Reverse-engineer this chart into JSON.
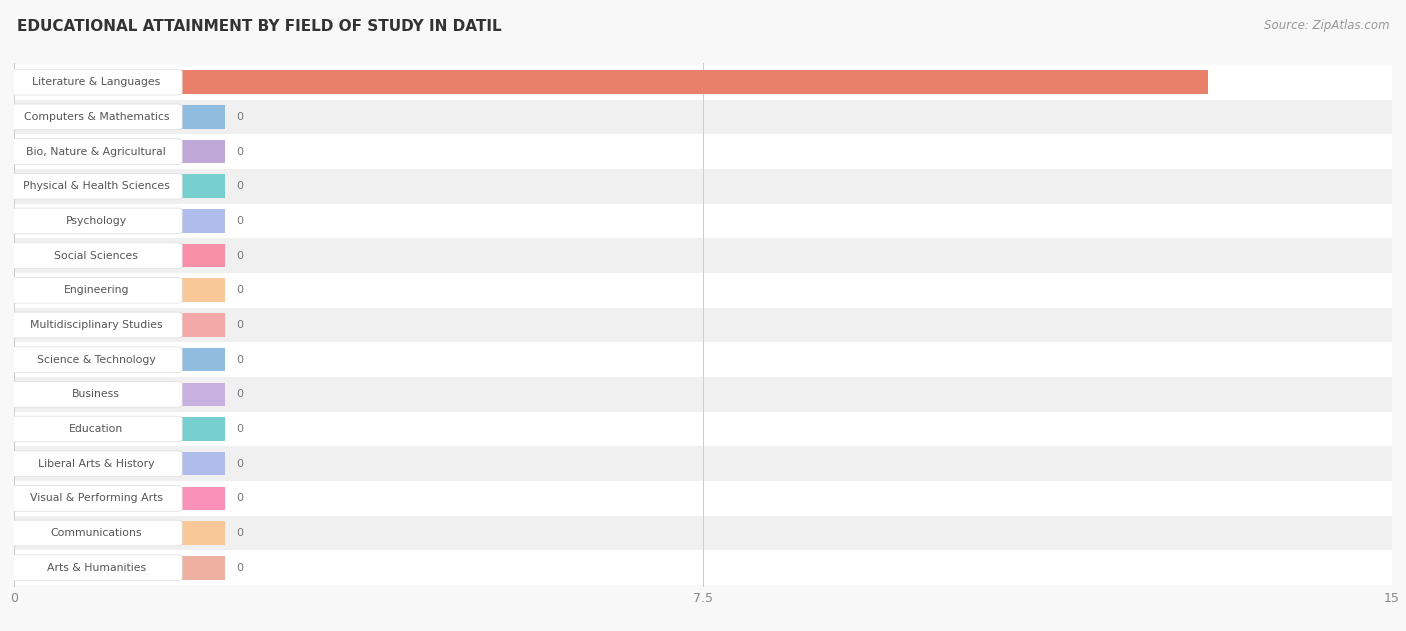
{
  "title": "EDUCATIONAL ATTAINMENT BY FIELD OF STUDY IN DATIL",
  "source": "Source: ZipAtlas.com",
  "categories": [
    "Literature & Languages",
    "Computers & Mathematics",
    "Bio, Nature & Agricultural",
    "Physical & Health Sciences",
    "Psychology",
    "Social Sciences",
    "Engineering",
    "Multidisciplinary Studies",
    "Science & Technology",
    "Business",
    "Education",
    "Liberal Arts & History",
    "Visual & Performing Arts",
    "Communications",
    "Arts & Humanities"
  ],
  "values": [
    13,
    0,
    0,
    0,
    0,
    0,
    0,
    0,
    0,
    0,
    0,
    0,
    0,
    0,
    0
  ],
  "bar_colors": [
    "#E8806A",
    "#90BCE0",
    "#C0A8D8",
    "#78CFCF",
    "#B0BCEC",
    "#F890A8",
    "#F8C898",
    "#F4A8A8",
    "#90BCE0",
    "#C8B0E0",
    "#78CFCF",
    "#B0BCEC",
    "#F890B8",
    "#F8C898",
    "#EEB0A0"
  ],
  "xlim": [
    0,
    15
  ],
  "xticks": [
    0,
    7.5,
    15
  ],
  "row_colors": [
    "#ffffff",
    "#f0f0f0"
  ],
  "background_color": "#f8f8f8",
  "pill_bg": "#ffffff",
  "title_fontsize": 11,
  "source_fontsize": 8.5,
  "bar_height": 0.68
}
